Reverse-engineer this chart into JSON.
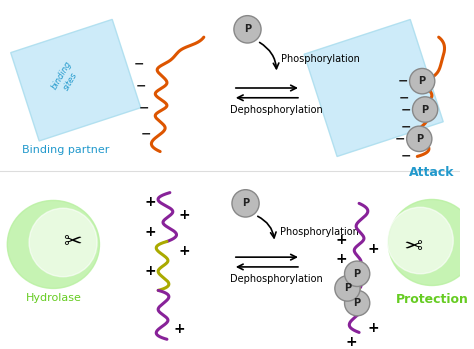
{
  "background_color": "#ffffff",
  "top_left_label": "Binding partner",
  "top_right_label": "Attack",
  "bottom_left_label": "Hydrolase",
  "bottom_right_label": "Protection",
  "arrow_label_top": "Phosphorylation",
  "arrow_label_bottom": "Dephosphorylation",
  "label_color_cyan": "#2299cc",
  "label_color_green": "#66cc22",
  "protein_color_orange": "#dd5500",
  "protein_color_purple": "#882299",
  "protein_color_yellow": "#aaaa00",
  "binding_partner_color": "#c5e8f8",
  "hydrolase_color": "#bbff99",
  "phospho_circle_color": "#bbbbbb",
  "phospho_circle_edge": "#888888"
}
